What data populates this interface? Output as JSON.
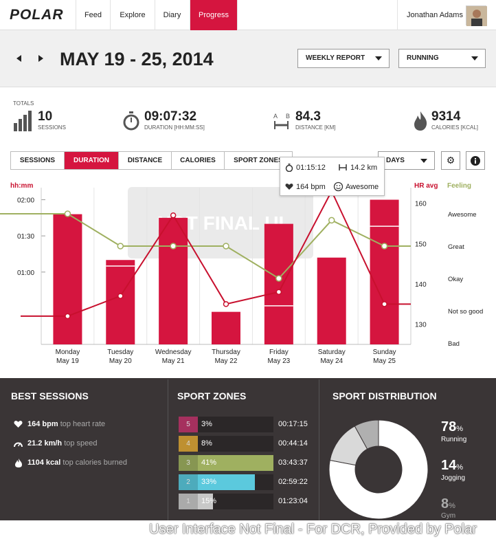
{
  "nav": {
    "logo": "POLAR",
    "items": [
      {
        "label": "Feed"
      },
      {
        "label": "Explore"
      },
      {
        "label": "Diary"
      },
      {
        "label": "Progress"
      }
    ],
    "user": "Jonathan Adams"
  },
  "header": {
    "date_range": "MAY 19 - 25, 2014",
    "report_dropdown": "WEEKLY REPORT",
    "sport_dropdown": "RUNNING"
  },
  "totals": {
    "label": "TOTALS",
    "sessions": {
      "value": "10",
      "label": "SESSIONS"
    },
    "duration": {
      "value": "09:07:32",
      "label": "DURATION [HH:MM:SS]"
    },
    "distance": {
      "value": "84.3",
      "label": "DISTANCE [KM]",
      "icon_text_a": "A",
      "icon_text_b": "B"
    },
    "calories": {
      "value": "9314",
      "label": "CALORIES [KCAL]"
    }
  },
  "tabs": [
    {
      "label": "SESSIONS"
    },
    {
      "label": "DURATION"
    },
    {
      "label": "DISTANCE"
    },
    {
      "label": "CALORIES"
    },
    {
      "label": "SPORT ZONES"
    }
  ],
  "days_dropdown": "DAYS",
  "tooltip": {
    "duration": "01:15:12",
    "distance": "14.2 km",
    "hr": "164 bpm",
    "feeling": "Awesome"
  },
  "watermark": "NOT FINAL UI",
  "chart_data": {
    "type": "bar",
    "categories": [
      "Monday May 19",
      "Tuesday May 20",
      "Wednesday May 21",
      "Thursday May 22",
      "Friday May 23",
      "Saturday May 24",
      "Sunday May 25"
    ],
    "day_names": [
      "Monday",
      "Tuesday",
      "Wednesday",
      "Thursday",
      "Friday",
      "Saturday",
      "Sunday"
    ],
    "day_dates": [
      "May 19",
      "May 20",
      "May 21",
      "May 22",
      "May 23",
      "May 24",
      "May 25"
    ],
    "left_axis_label": "hh:mm",
    "left_ticks": [
      "02:00",
      "01:30",
      "01:00"
    ],
    "left_tick_minutes": [
      120,
      90,
      60
    ],
    "right_axis_label": "HR avg",
    "right_ticks": [
      160,
      150,
      140,
      130
    ],
    "feeling_label": "Feeling",
    "feeling_ticks": [
      "Awesome",
      "Great",
      "Okay",
      "Not so good",
      "Bad"
    ],
    "series": [
      {
        "name": "Duration",
        "unit": "minutes",
        "values": [
          108,
          70,
          105,
          27,
          100,
          72,
          120
        ],
        "split_at": [
          null,
          65,
          null,
          null,
          32,
          null,
          98
        ]
      },
      {
        "name": "HR avg",
        "unit": "bpm",
        "values": [
          132,
          137,
          157,
          135,
          138,
          163,
          135
        ]
      },
      {
        "name": "Feeling",
        "values": [
          4.0,
          3.0,
          3.0,
          3.0,
          2.0,
          3.8,
          3.0
        ]
      }
    ],
    "y_minutes_range": [
      0,
      130
    ],
    "hr_range": [
      125,
      163
    ],
    "colors": {
      "bar": "#d5153f",
      "hr": "#c8102e",
      "feeling": "#9fb060"
    }
  },
  "best_sessions": {
    "title": "BEST SESSIONS",
    "items": [
      {
        "value": "164 bpm",
        "desc": "top heart rate"
      },
      {
        "value": "21.2 km/h",
        "desc": "top speed"
      },
      {
        "value": "1104 kcal",
        "desc": "top calories burned"
      }
    ]
  },
  "sport_zones": {
    "title": "SPORT ZONES",
    "zones": [
      {
        "zone": "5",
        "pct": "3%",
        "time": "00:17:15",
        "fraction": 0.03,
        "color": "#c2386f"
      },
      {
        "zone": "4",
        "pct": "8%",
        "time": "00:44:14",
        "fraction": 0.08,
        "color": "#e0a93a"
      },
      {
        "zone": "3",
        "pct": "41%",
        "time": "03:43:37",
        "fraction": 0.41,
        "color": "#9fb060"
      },
      {
        "zone": "2",
        "pct": "33%",
        "time": "02:59:22",
        "fraction": 0.33,
        "color": "#5bc9dd"
      },
      {
        "zone": "1",
        "pct": "15%",
        "time": "01:23:04",
        "fraction": 0.15,
        "color": "#c8c8c8"
      }
    ]
  },
  "sport_distribution": {
    "title": "SPORT DISTRIBUTION",
    "items": [
      {
        "pct": "78",
        "label": "Running",
        "value": 78,
        "color": "#ffffff"
      },
      {
        "pct": "14",
        "label": "Jogging",
        "value": 14,
        "color": "#d9d9d9"
      },
      {
        "pct": "8",
        "label": "Gym",
        "value": 8,
        "color": "#b0b0b0"
      }
    ],
    "pct_sign": "%"
  },
  "footer": "User Interface Not Final - For DCR, Provided by Polar"
}
